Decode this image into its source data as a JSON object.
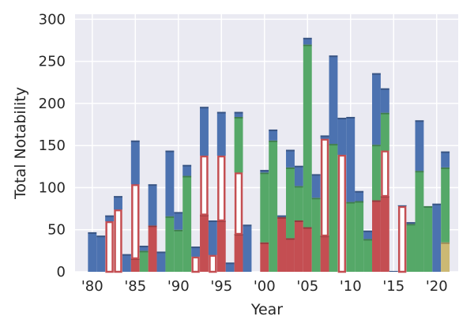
{
  "chart_data": {
    "type": "bar",
    "stacked": true,
    "title": "",
    "xlabel": "Year",
    "ylabel": "Total Notability",
    "ylim": [
      0,
      306
    ],
    "xlim": [
      1978,
      2022.5
    ],
    "grid": true,
    "yticks": [
      0,
      50,
      100,
      150,
      200,
      250,
      300
    ],
    "xticks": [
      1980,
      1985,
      1990,
      1995,
      2000,
      2005,
      2010,
      2015,
      2020
    ],
    "xtick_labels": [
      "'80",
      "'85",
      "'90",
      "'95",
      "'00",
      "'05",
      "'10",
      "'15",
      "'20"
    ],
    "ytick_labels": [
      "0",
      "50",
      "100",
      "150",
      "200",
      "250",
      "300"
    ],
    "x": [
      1980,
      1981,
      1982,
      1983,
      1984,
      1985,
      1986,
      1987,
      1988,
      1989,
      1990,
      1991,
      1992,
      1993,
      1994,
      1995,
      1996,
      1997,
      1998,
      1999,
      2000,
      2001,
      2002,
      2003,
      2004,
      2005,
      2006,
      2007,
      2008,
      2009,
      2010,
      2011,
      2012,
      2013,
      2014,
      2015,
      2016,
      2017,
      2018,
      2019,
      2020,
      2021
    ],
    "series": [
      {
        "name": "yellow",
        "color": "#ccb974",
        "style": "filled",
        "values": [
          0,
          0,
          0,
          0,
          0,
          0,
          0,
          0,
          0,
          0,
          0,
          0,
          0,
          0,
          0,
          0,
          0,
          0,
          0,
          0,
          0,
          0,
          0,
          0,
          0,
          0,
          0,
          0,
          0,
          0,
          0,
          0,
          0,
          0,
          0,
          0,
          0,
          0,
          0,
          0,
          0,
          35
        ]
      },
      {
        "name": "red",
        "color": "#c44e52",
        "style": "filled",
        "values": [
          0,
          0,
          0,
          0,
          0,
          16,
          0,
          55,
          0,
          0,
          0,
          0,
          0,
          68,
          0,
          61,
          0,
          45,
          0,
          0,
          35,
          0,
          65,
          40,
          61,
          53,
          0,
          43,
          0,
          0,
          0,
          0,
          0,
          85,
          90,
          0,
          0,
          0,
          0,
          0,
          0,
          0
        ]
      },
      {
        "name": "red-outline",
        "color": "#c44e52",
        "style": "hollow",
        "values": [
          0,
          0,
          60,
          74,
          0,
          88,
          0,
          0,
          0,
          0,
          0,
          0,
          18,
          70,
          20,
          77,
          0,
          73,
          0,
          0,
          0,
          0,
          0,
          0,
          0,
          0,
          0,
          115,
          0,
          139,
          0,
          0,
          0,
          0,
          54,
          0,
          78,
          0,
          0,
          0,
          0,
          0
        ]
      },
      {
        "name": "green",
        "color": "#55a868",
        "style": "filled",
        "values": [
          0,
          0,
          0,
          0,
          0,
          0,
          25,
          0,
          0,
          66,
          50,
          114,
          0,
          0,
          0,
          0,
          0,
          66,
          0,
          0,
          83,
          156,
          0,
          84,
          41,
          217,
          88,
          0,
          152,
          0,
          83,
          84,
          39,
          66,
          45,
          0,
          0,
          57,
          120,
          78,
          0,
          89
        ]
      },
      {
        "name": "blue",
        "color": "#4c72b0",
        "style": "filled",
        "values": [
          47,
          43,
          7,
          16,
          21,
          52,
          6,
          49,
          24,
          78,
          21,
          13,
          12,
          58,
          41,
          52,
          11,
          6,
          56,
          0,
          3,
          13,
          2,
          21,
          24,
          8,
          28,
          4,
          105,
          44,
          101,
          12,
          10,
          85,
          29,
          1,
          1,
          2,
          60,
          0,
          81,
          19
        ]
      }
    ]
  },
  "style": {
    "background": "#eaeaf2",
    "grid": "#ffffff"
  }
}
